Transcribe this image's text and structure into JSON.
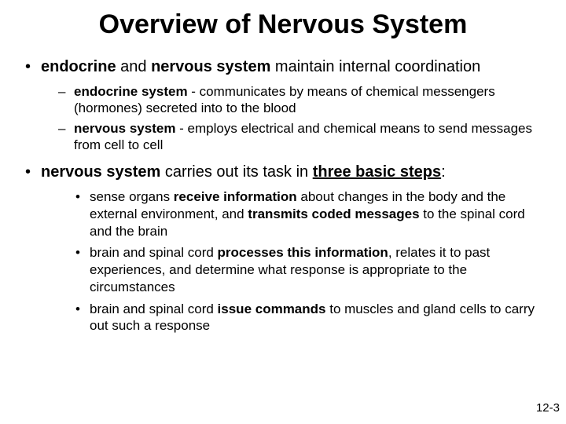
{
  "title": "Overview of Nervous System",
  "bullets": {
    "b1": {
      "pre_bold": "endocrine",
      "mid": " and ",
      "bold2": "nervous system",
      "post": " maintain internal coordination"
    },
    "b1_subs": {
      "s1": {
        "bold": "endocrine system",
        "rest": " -  communicates by means of chemical messengers (hormones) secreted into to the blood"
      },
      "s2": {
        "bold": "nervous system",
        "rest": " -  employs electrical and chemical means to send messages from cell to cell"
      }
    },
    "b2": {
      "bold": "nervous system",
      "mid": " carries out its task in ",
      "u_bold": "three basic steps",
      "post": ":"
    },
    "b2_subs": {
      "s1": {
        "t1": "sense organs ",
        "b1": "receive",
        "t2": " ",
        "b2": "information",
        "t3": " about changes in the body and the external environment, and ",
        "b3": "transmits coded messages",
        "t4": " to the spinal cord and the brain"
      },
      "s2": {
        "t1": "brain and spinal cord ",
        "b1": "processes this information",
        "t2": ", relates it to past experiences, and determine what response is appropriate to the circumstances"
      },
      "s3": {
        "t1": "brain and spinal cord ",
        "b1": "issue commands",
        "t2": " to muscles and gland cells to carry out such a response"
      }
    }
  },
  "pagenum": "12-3",
  "colors": {
    "background": "#ffffff",
    "text": "#000000"
  },
  "fonts": {
    "title_size": 34,
    "level1_size": 20,
    "level2_size": 17,
    "level3_size": 17,
    "pagenum_size": 15
  }
}
